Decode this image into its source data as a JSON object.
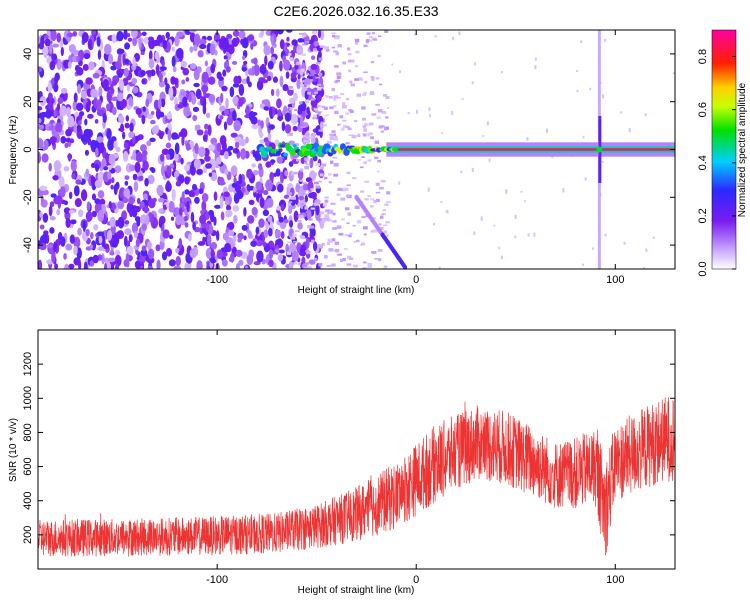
{
  "title": "C2E6.2026.032.16.35.E33",
  "chart_data": [
    {
      "type": "heatmap",
      "description": "spectrogram",
      "xlabel": "Height of straight line (km)",
      "ylabel": "Frequency (Hz)",
      "xlim": [
        -190,
        130
      ],
      "ylim": [
        -50,
        50
      ],
      "xticks": [
        -100,
        0,
        100
      ],
      "xtick_labels": [
        "-100",
        "0",
        "100"
      ],
      "yticks": [
        -40,
        -20,
        0,
        20,
        40
      ],
      "ytick_labels": [
        "-40",
        "-20",
        "0",
        "20",
        "40"
      ],
      "colorbar": {
        "label": "Normalized spectral amplitude",
        "range": [
          0,
          0.9
        ],
        "ticks": [
          0,
          0.2,
          0.4,
          0.6,
          0.8
        ],
        "tick_labels": [
          "0.0",
          "0.2",
          "0.4",
          "0.6",
          "0.8"
        ],
        "colormap": "rainbow (white-violet-blue-cyan-green-yellow-red-magenta)"
      },
      "features": [
        {
          "name": "noise-region",
          "x_range": [
            -190,
            -55
          ],
          "note": "scattered violet noise over all frequencies"
        },
        {
          "name": "zero-frequency-carrier",
          "x_range": [
            -80,
            130
          ],
          "frequency": 0,
          "peak_amplitude": 0.9
        },
        {
          "name": "descending-streak",
          "x_range": [
            -30,
            -5
          ],
          "frequency_range": [
            -20,
            -50
          ]
        },
        {
          "name": "vertical-line",
          "x": 92,
          "frequency_range": [
            -50,
            50
          ]
        }
      ]
    },
    {
      "type": "line",
      "xlabel": "Height of straight line (km)",
      "ylabel": "SNR (10 * v/v)",
      "xlim": [
        -190,
        130
      ],
      "ylim": [
        0,
        1400
      ],
      "xticks": [
        -100,
        0,
        100
      ],
      "xtick_labels": [
        "-100",
        "0",
        "100"
      ],
      "yticks": [
        200,
        400,
        600,
        800,
        1000,
        1200
      ],
      "ytick_labels": [
        "200",
        "400",
        "600",
        "800",
        "1000",
        "1200"
      ],
      "color": "#ee3333",
      "series_profile": {
        "x": [
          -190,
          -150,
          -100,
          -70,
          -50,
          -30,
          -10,
          10,
          30,
          45,
          60,
          70,
          80,
          90,
          95,
          100,
          110,
          120,
          130
        ],
        "mean": [
          180,
          185,
          195,
          210,
          250,
          320,
          430,
          620,
          740,
          710,
          620,
          550,
          560,
          600,
          350,
          620,
          680,
          740,
          780
        ],
        "spread": [
          110,
          110,
          115,
          120,
          130,
          160,
          200,
          230,
          220,
          220,
          210,
          200,
          210,
          230,
          300,
          230,
          240,
          250,
          260
        ]
      }
    }
  ]
}
